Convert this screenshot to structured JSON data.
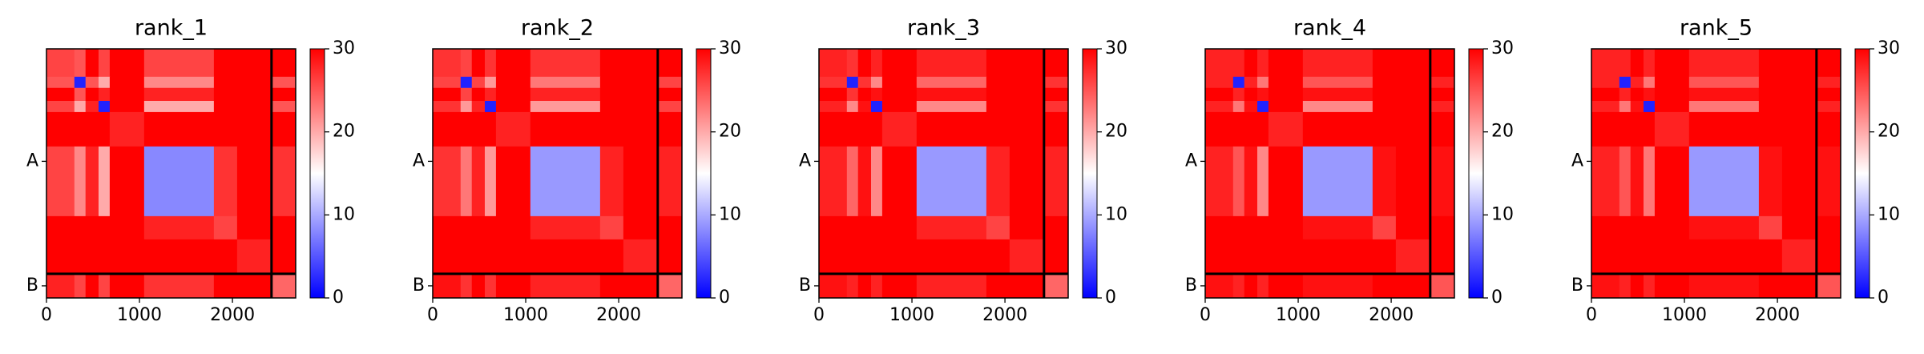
{
  "chart_data": [
    {
      "type": "heatmap",
      "title": "rank_1",
      "colormap": "bwr",
      "clim": [
        0,
        30
      ],
      "cticks": [
        0,
        10,
        20,
        30
      ],
      "xlim": [
        0,
        2680
      ],
      "xticks": [
        0,
        1000,
        2000
      ],
      "ylim": [
        0,
        2680
      ],
      "yticks": [
        {
          "value": 1210,
          "label": "A"
        },
        {
          "value": 2550,
          "label": "B"
        }
      ],
      "chain_breaks": [
        2420
      ],
      "bins": [
        0,
        300,
        420,
        560,
        680,
        1050,
        1800,
        2050,
        2420,
        2680
      ],
      "z": [
        [
          26,
          25,
          30,
          26,
          30,
          26,
          30,
          30,
          30
        ],
        [
          25,
          2,
          25,
          20,
          30,
          22,
          30,
          30,
          25
        ],
        [
          30,
          25,
          30,
          28,
          30,
          28,
          30,
          30,
          30
        ],
        [
          26,
          20,
          28,
          2,
          30,
          20,
          30,
          30,
          25
        ],
        [
          30,
          30,
          30,
          30,
          28,
          30,
          30,
          30,
          30
        ],
        [
          26,
          22,
          28,
          20,
          30,
          8,
          27,
          30,
          27
        ],
        [
          30,
          30,
          30,
          30,
          30,
          28,
          26,
          30,
          30
        ],
        [
          30,
          30,
          30,
          30,
          30,
          30,
          30,
          28,
          30
        ],
        [
          28,
          26,
          30,
          26,
          30,
          27,
          30,
          30,
          24
        ]
      ]
    },
    {
      "type": "heatmap",
      "title": "rank_2",
      "colormap": "bwr",
      "clim": [
        0,
        30
      ],
      "cticks": [
        0,
        10,
        20,
        30
      ],
      "xlim": [
        0,
        2680
      ],
      "xticks": [
        0,
        1000,
        2000
      ],
      "ylim": [
        0,
        2680
      ],
      "yticks": [
        {
          "value": 1210,
          "label": "A"
        },
        {
          "value": 2550,
          "label": "B"
        }
      ],
      "chain_breaks": [
        2420
      ],
      "bins": [
        0,
        300,
        420,
        560,
        680,
        1050,
        1800,
        2050,
        2420,
        2680
      ],
      "z": [
        [
          27,
          26,
          30,
          27,
          30,
          27,
          30,
          30,
          30
        ],
        [
          26,
          2,
          26,
          21,
          30,
          23,
          30,
          30,
          26
        ],
        [
          30,
          26,
          30,
          28,
          30,
          28,
          30,
          30,
          30
        ],
        [
          27,
          21,
          28,
          2,
          30,
          21,
          30,
          30,
          26
        ],
        [
          30,
          30,
          30,
          30,
          28,
          30,
          30,
          30,
          30
        ],
        [
          27,
          23,
          28,
          21,
          30,
          9,
          28,
          30,
          28
        ],
        [
          30,
          30,
          30,
          30,
          30,
          28,
          26,
          30,
          30
        ],
        [
          30,
          30,
          30,
          30,
          30,
          30,
          30,
          28,
          30
        ],
        [
          29,
          27,
          30,
          27,
          30,
          28,
          30,
          30,
          24
        ]
      ]
    },
    {
      "type": "heatmap",
      "title": "rank_3",
      "colormap": "bwr",
      "clim": [
        0,
        30
      ],
      "cticks": [
        0,
        10,
        20,
        30
      ],
      "xlim": [
        0,
        2680
      ],
      "xticks": [
        0,
        1000,
        2000
      ],
      "ylim": [
        0,
        2680
      ],
      "yticks": [
        {
          "value": 1210,
          "label": "A"
        },
        {
          "value": 2550,
          "label": "B"
        }
      ],
      "chain_breaks": [
        2420
      ],
      "bins": [
        0,
        300,
        420,
        560,
        680,
        1050,
        1800,
        2050,
        2420,
        2680
      ],
      "z": [
        [
          28,
          27,
          30,
          28,
          30,
          28,
          30,
          30,
          30
        ],
        [
          27,
          2,
          27,
          22,
          30,
          24,
          30,
          30,
          27
        ],
        [
          30,
          27,
          30,
          29,
          30,
          29,
          30,
          30,
          30
        ],
        [
          28,
          22,
          29,
          2,
          30,
          22,
          30,
          30,
          27
        ],
        [
          30,
          30,
          30,
          30,
          28,
          30,
          30,
          30,
          30
        ],
        [
          28,
          24,
          29,
          22,
          30,
          9,
          28,
          30,
          28
        ],
        [
          30,
          30,
          30,
          30,
          30,
          28,
          26,
          30,
          30
        ],
        [
          30,
          30,
          30,
          30,
          30,
          30,
          30,
          28,
          30
        ],
        [
          29,
          28,
          30,
          28,
          30,
          28,
          30,
          30,
          24
        ]
      ]
    },
    {
      "type": "heatmap",
      "title": "rank_4",
      "colormap": "bwr",
      "clim": [
        0,
        30
      ],
      "cticks": [
        0,
        10,
        20,
        30
      ],
      "xlim": [
        0,
        2680
      ],
      "xticks": [
        0,
        1000,
        2000
      ],
      "ylim": [
        0,
        2680
      ],
      "yticks": [
        {
          "value": 1210,
          "label": "A"
        },
        {
          "value": 2550,
          "label": "B"
        }
      ],
      "chain_breaks": [
        2420
      ],
      "bins": [
        0,
        300,
        420,
        560,
        680,
        1050,
        1800,
        2050,
        2420,
        2680
      ],
      "z": [
        [
          28,
          28,
          30,
          28,
          30,
          28,
          30,
          30,
          30
        ],
        [
          28,
          2,
          28,
          23,
          30,
          25,
          30,
          30,
          28
        ],
        [
          30,
          28,
          30,
          29,
          30,
          29,
          30,
          30,
          30
        ],
        [
          28,
          23,
          29,
          2,
          30,
          22,
          30,
          30,
          28
        ],
        [
          30,
          30,
          30,
          30,
          28,
          30,
          30,
          30,
          30
        ],
        [
          28,
          25,
          29,
          22,
          30,
          9,
          29,
          30,
          29
        ],
        [
          30,
          30,
          30,
          30,
          30,
          29,
          26,
          30,
          30
        ],
        [
          30,
          30,
          30,
          30,
          30,
          30,
          30,
          28,
          30
        ],
        [
          29,
          28,
          30,
          28,
          30,
          29,
          30,
          30,
          25
        ]
      ]
    },
    {
      "type": "heatmap",
      "title": "rank_5",
      "colormap": "bwr",
      "clim": [
        0,
        30
      ],
      "cticks": [
        0,
        10,
        20,
        30
      ],
      "xlim": [
        0,
        2680
      ],
      "xticks": [
        0,
        1000,
        2000
      ],
      "ylim": [
        0,
        2680
      ],
      "yticks": [
        {
          "value": 1210,
          "label": "A"
        },
        {
          "value": 2550,
          "label": "B"
        }
      ],
      "chain_breaks": [
        2420
      ],
      "bins": [
        0,
        300,
        420,
        560,
        680,
        1050,
        1800,
        2050,
        2420,
        2680
      ],
      "z": [
        [
          28,
          28,
          30,
          28,
          30,
          28,
          30,
          30,
          30
        ],
        [
          28,
          2,
          28,
          23,
          30,
          25,
          30,
          30,
          28
        ],
        [
          30,
          28,
          30,
          29,
          30,
          29,
          30,
          30,
          30
        ],
        [
          28,
          23,
          29,
          2,
          30,
          23,
          30,
          30,
          28
        ],
        [
          30,
          30,
          30,
          30,
          28,
          30,
          30,
          30,
          30
        ],
        [
          28,
          25,
          29,
          23,
          30,
          9,
          29,
          30,
          29
        ],
        [
          30,
          30,
          30,
          30,
          30,
          29,
          26,
          30,
          30
        ],
        [
          30,
          30,
          30,
          30,
          30,
          30,
          30,
          28,
          30
        ],
        [
          29,
          28,
          30,
          28,
          30,
          29,
          30,
          30,
          25
        ]
      ]
    }
  ]
}
